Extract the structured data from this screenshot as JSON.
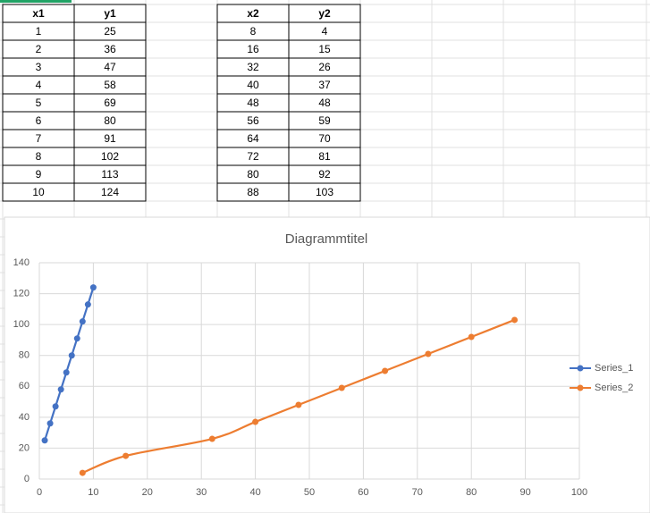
{
  "tables": [
    {
      "header": [
        "x1",
        "y1"
      ],
      "rows": [
        [
          1,
          25
        ],
        [
          2,
          36
        ],
        [
          3,
          47
        ],
        [
          4,
          58
        ],
        [
          5,
          69
        ],
        [
          6,
          80
        ],
        [
          7,
          91
        ],
        [
          8,
          102
        ],
        [
          9,
          113
        ],
        [
          10,
          124
        ]
      ]
    },
    {
      "header": [
        "x2",
        "y2"
      ],
      "rows": [
        [
          8,
          4
        ],
        [
          16,
          15
        ],
        [
          32,
          26
        ],
        [
          40,
          37
        ],
        [
          48,
          48
        ],
        [
          56,
          59
        ],
        [
          64,
          70
        ],
        [
          72,
          81
        ],
        [
          80,
          92
        ],
        [
          88,
          103
        ]
      ]
    }
  ],
  "chart_data": {
    "type": "scatter",
    "title": "Diagrammtitel",
    "smooth": true,
    "grid": true,
    "legend": "right",
    "series": [
      {
        "name": "Series_1",
        "color": "#4472c4",
        "x": [
          1,
          2,
          3,
          4,
          5,
          6,
          7,
          8,
          9,
          10
        ],
        "values": [
          25,
          36,
          47,
          58,
          69,
          80,
          91,
          102,
          113,
          124
        ]
      },
      {
        "name": "Series_2",
        "color": "#ed7d31",
        "x": [
          8,
          16,
          32,
          40,
          48,
          56,
          64,
          72,
          80,
          88
        ],
        "values": [
          4,
          15,
          26,
          37,
          48,
          59,
          70,
          81,
          92,
          103
        ]
      }
    ],
    "xlim": [
      0,
      100
    ],
    "xticks": [
      0,
      10,
      20,
      30,
      40,
      50,
      60,
      70,
      80,
      90,
      100
    ],
    "ylim": [
      0,
      140
    ],
    "yticks": [
      0,
      20,
      40,
      60,
      80,
      100,
      120,
      140
    ]
  }
}
